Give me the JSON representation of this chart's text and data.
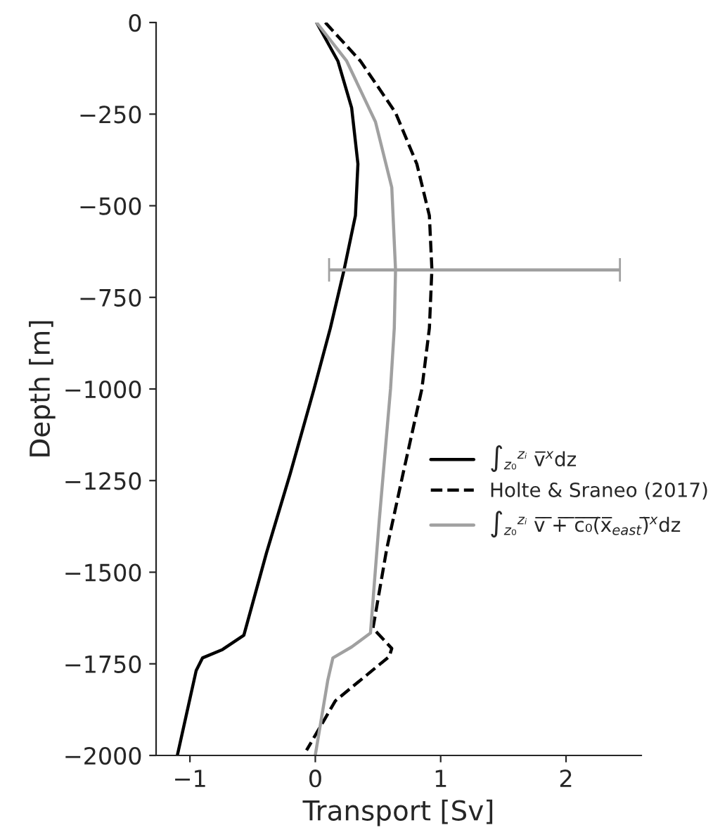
{
  "chart_data": {
    "type": "line",
    "xlabel": "Transport [Sv]",
    "ylabel": "Depth [m]",
    "xlim": [
      -1.27,
      2.6
    ],
    "xticks": [
      {
        "value": -1,
        "label": "−1"
      },
      0,
      1,
      2
    ],
    "ylim": [
      -2000,
      0
    ],
    "yticks": [
      {
        "value": -2000,
        "label": "−2000"
      },
      {
        "value": -1750,
        "label": "−1750"
      },
      {
        "value": -1500,
        "label": "−1500"
      },
      {
        "value": -1250,
        "label": "−1250"
      },
      {
        "value": -1000,
        "label": "−1000"
      },
      {
        "value": -750,
        "label": "−750"
      },
      {
        "value": -500,
        "label": "−500"
      },
      {
        "value": -250,
        "label": "−250"
      },
      0
    ],
    "grid": false,
    "legend": "right",
    "marker": "none",
    "series": [
      {
        "name": "∫$_{z₀}$$^{zᵢ}$ v̅$^{x}$dz",
        "color": "#000000",
        "line_style": "solid",
        "x": [
          0.01,
          0.18,
          0.29,
          0.34,
          0.32,
          0.23,
          0.12,
          -0.01,
          -0.2,
          -0.39,
          -0.57,
          -0.74,
          -0.9,
          -0.95,
          -1.1
        ],
        "values": [
          0,
          -105,
          -233,
          -386,
          -527,
          -674,
          -834,
          -1000,
          -1231,
          -1448,
          -1672,
          -1711,
          -1734,
          -1768,
          -1999
        ]
      },
      {
        "name": "Holte & Sraneo (2017)",
        "color": "#000000",
        "line_style": "dashed",
        "x": [
          0.08,
          0.36,
          0.64,
          0.81,
          0.91,
          0.93,
          0.91,
          0.85,
          0.7,
          0.57,
          0.46,
          0.61,
          0.59,
          0.16,
          -0.07
        ],
        "values": [
          0,
          -105,
          -246,
          -386,
          -527,
          -674,
          -834,
          -1000,
          -1231,
          -1436,
          -1653,
          -1708,
          -1730,
          -1851,
          -1986
        ]
      },
      {
        "name": "∫$_{z₀}$$^{zᵢ}$ v̅ ̅+̅ ̅c̅₀̅(̅x̅$_{east}$)̅$^{x}$dz",
        "color": "#a0a0a0",
        "line_style": "solid",
        "x": [
          0.01,
          0.25,
          0.48,
          0.61,
          0.64,
          0.63,
          0.6,
          0.51,
          0.44,
          0.29,
          0.14,
          0.1,
          0.0
        ],
        "values": [
          0,
          -105,
          -271,
          -450,
          -675,
          -834,
          -1000,
          -1359,
          -1666,
          -1704,
          -1734,
          -1794,
          -1999
        ],
        "xerrors": [
          null,
          null,
          null,
          null,
          [
            0.11,
            2.43
          ],
          null,
          null,
          null,
          null,
          null,
          null,
          null,
          null
        ]
      }
    ]
  }
}
